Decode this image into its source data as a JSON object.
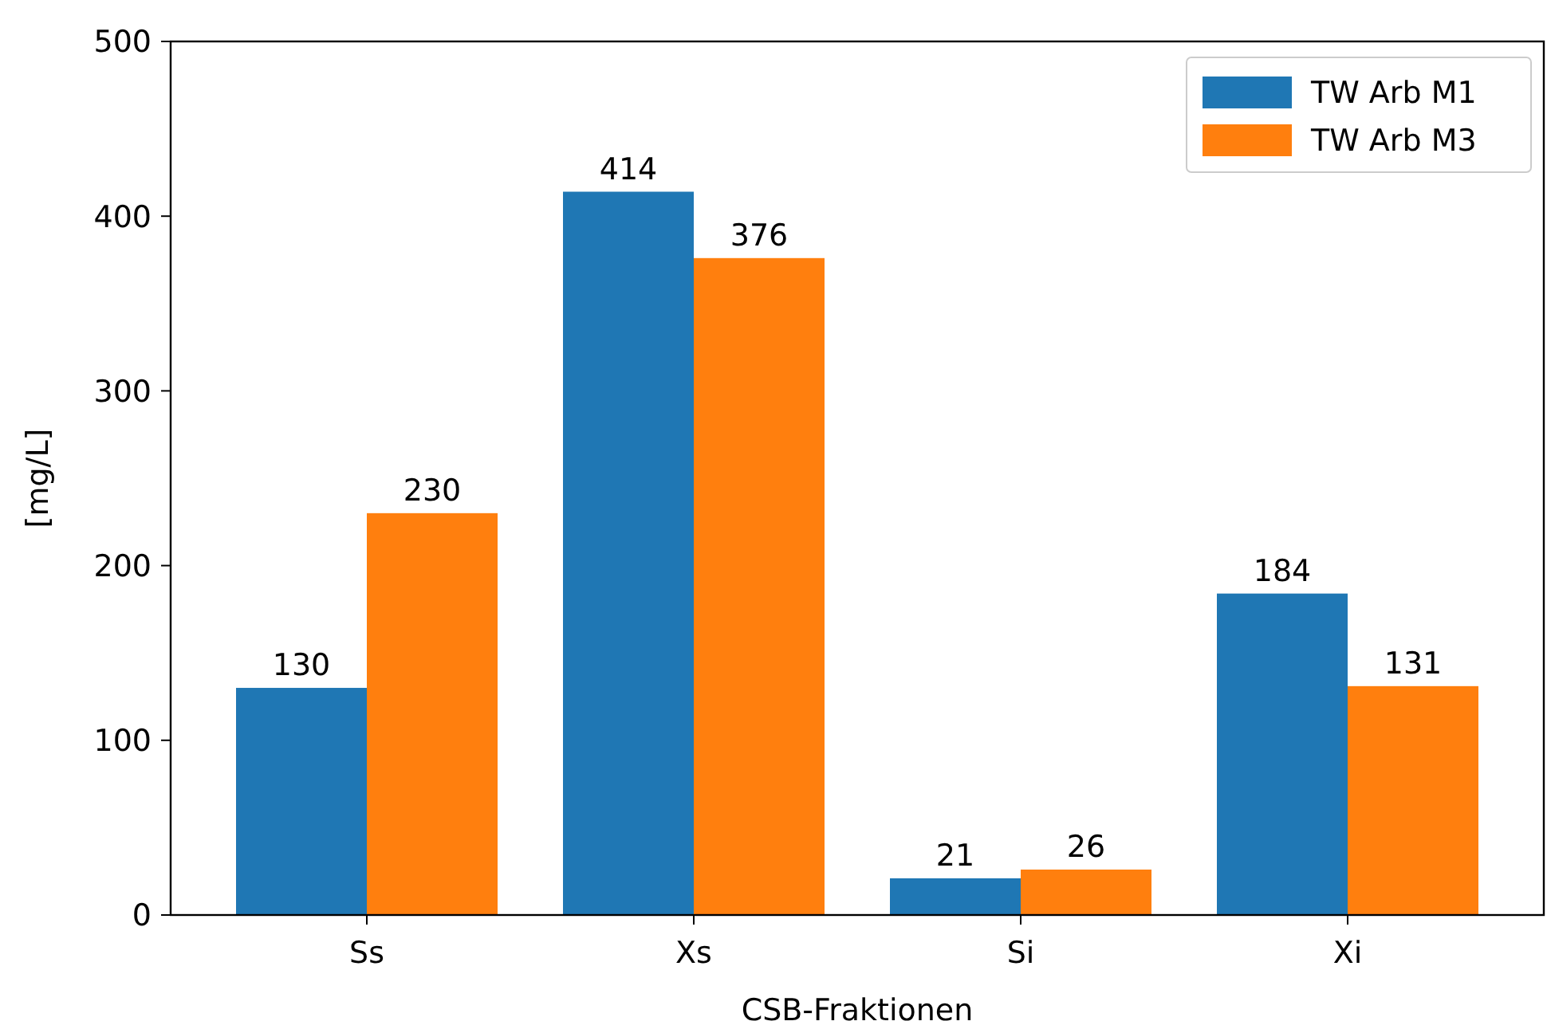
{
  "chart_data": {
    "type": "bar",
    "xlabel": "CSB-Fraktionen",
    "ylabel": "[mg/L]",
    "categories": [
      "Ss",
      "Xs",
      "Si",
      "Xi"
    ],
    "series": [
      {
        "name": "TW Arb M1",
        "color": "#1f77b4",
        "values": [
          130,
          414,
          21,
          184
        ]
      },
      {
        "name": "TW Arb M3",
        "color": "#ff7f0e",
        "values": [
          230,
          376,
          26,
          131
        ]
      }
    ],
    "ylim": [
      0,
      500
    ],
    "yticks": [
      0,
      100,
      200,
      300,
      400,
      500
    ],
    "data_labels": true,
    "legend": "top right",
    "grid": false
  }
}
